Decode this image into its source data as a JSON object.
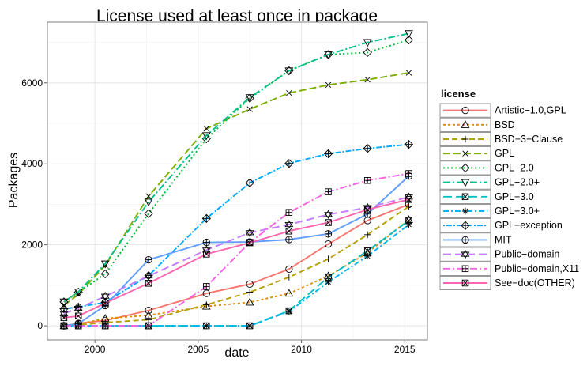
{
  "chart_data": {
    "type": "line",
    "title": "License used at least once in package",
    "xlabel": "date",
    "ylabel": "Packages",
    "xlim": [
      1997.7,
      2016.1
    ],
    "ylim": [
      -350,
      7500
    ],
    "x_ticks": [
      2000,
      2005,
      2010,
      2015
    ],
    "y_ticks": [
      0,
      2000,
      4000,
      6000
    ],
    "grid": true,
    "legend_title": "license",
    "legend_position": "right",
    "series": [
      {
        "name": "Artistic−1.0,GPL",
        "color": "#F8766D",
        "dash": "",
        "marker": "circle",
        "points": [
          [
            1998.5,
            0
          ],
          [
            1999.2,
            60
          ],
          [
            2000.5,
            130
          ],
          [
            2002.6,
            380
          ],
          [
            2005.4,
            800
          ],
          [
            2007.5,
            1030
          ],
          [
            2009.4,
            1400
          ],
          [
            2011.3,
            2020
          ],
          [
            2013.2,
            2600
          ],
          [
            2015.2,
            3000
          ]
        ]
      },
      {
        "name": "BSD",
        "color": "#DE8C00",
        "dash": "3,3",
        "marker": "triangle",
        "points": [
          [
            1998.5,
            0
          ],
          [
            1999.2,
            40
          ],
          [
            2000.5,
            180
          ],
          [
            2002.6,
            260
          ],
          [
            2005.4,
            480
          ],
          [
            2007.5,
            580
          ],
          [
            2009.4,
            800
          ],
          [
            2011.3,
            1230
          ],
          [
            2013.2,
            1800
          ],
          [
            2015.2,
            2620
          ]
        ]
      },
      {
        "name": "BSD−3−Clause",
        "color": "#B79F00",
        "dash": "7,4",
        "marker": "plus",
        "points": [
          [
            1998.5,
            0
          ],
          [
            1999.2,
            20
          ],
          [
            2000.5,
            80
          ],
          [
            2002.6,
            150
          ],
          [
            2005.4,
            520
          ],
          [
            2007.5,
            830
          ],
          [
            2009.4,
            1200
          ],
          [
            2011.3,
            1650
          ],
          [
            2013.2,
            2250
          ],
          [
            2015.2,
            2950
          ]
        ]
      },
      {
        "name": "GPL",
        "color": "#7CAE00",
        "dash": "9,4",
        "marker": "cross",
        "points": [
          [
            1998.5,
            500
          ],
          [
            1999.2,
            780
          ],
          [
            2000.5,
            1490
          ],
          [
            2002.6,
            3200
          ],
          [
            2005.4,
            4870
          ],
          [
            2007.5,
            5350
          ],
          [
            2009.4,
            5750
          ],
          [
            2011.3,
            5950
          ],
          [
            2013.2,
            6080
          ],
          [
            2015.2,
            6250
          ]
        ]
      },
      {
        "name": "GPL−2.0",
        "color": "#00BA38",
        "dash": "2,3",
        "marker": "diamond",
        "points": [
          [
            1998.5,
            590
          ],
          [
            1999.2,
            830
          ],
          [
            2000.5,
            1280
          ],
          [
            2002.6,
            2770
          ],
          [
            2005.4,
            4620
          ],
          [
            2007.5,
            5620
          ],
          [
            2009.4,
            6300
          ],
          [
            2011.3,
            6700
          ],
          [
            2013.2,
            6750
          ],
          [
            2015.2,
            7060
          ]
        ]
      },
      {
        "name": "GPL−2.0+",
        "color": "#00C08B",
        "dash": "9,3,2,3",
        "marker": "triangle-down",
        "points": [
          [
            1998.5,
            590
          ],
          [
            1999.2,
            840
          ],
          [
            2000.5,
            1530
          ],
          [
            2002.6,
            3060
          ],
          [
            2005.4,
            4700
          ],
          [
            2007.5,
            5640
          ],
          [
            2009.4,
            6300
          ],
          [
            2011.3,
            6700
          ],
          [
            2013.2,
            7000
          ],
          [
            2015.2,
            7220
          ]
        ]
      },
      {
        "name": "GPL−3.0",
        "color": "#00BFC4",
        "dash": "11,5",
        "marker": "square-x",
        "points": [
          [
            1998.5,
            0
          ],
          [
            1999.2,
            0
          ],
          [
            2000.5,
            0
          ],
          [
            2002.6,
            0
          ],
          [
            2005.4,
            0
          ],
          [
            2007.5,
            0
          ],
          [
            2009.4,
            370
          ],
          [
            2011.3,
            1200
          ],
          [
            2013.2,
            1850
          ],
          [
            2015.2,
            2600
          ]
        ]
      },
      {
        "name": "GPL−3.0+",
        "color": "#00B4F0",
        "dash": "7,3,2,3",
        "marker": "asterisk",
        "points": [
          [
            1998.5,
            0
          ],
          [
            1999.2,
            0
          ],
          [
            2000.5,
            0
          ],
          [
            2002.6,
            0
          ],
          [
            2005.4,
            0
          ],
          [
            2007.5,
            0
          ],
          [
            2009.4,
            350
          ],
          [
            2011.3,
            1080
          ],
          [
            2013.2,
            1720
          ],
          [
            2015.2,
            2500
          ]
        ]
      },
      {
        "name": "GPL−exception",
        "color": "#00A9FF",
        "dash": "2,2,7,2",
        "marker": "diamond-plus",
        "points": [
          [
            1998.5,
            420
          ],
          [
            1999.2,
            460
          ],
          [
            2000.5,
            580
          ],
          [
            2002.6,
            1240
          ],
          [
            2005.4,
            2650
          ],
          [
            2007.5,
            3530
          ],
          [
            2009.4,
            4010
          ],
          [
            2011.3,
            4250
          ],
          [
            2013.2,
            4380
          ],
          [
            2015.2,
            4480
          ]
        ]
      },
      {
        "name": "MIT",
        "color": "#619CFF",
        "dash": "",
        "marker": "circle-plus",
        "points": [
          [
            1998.5,
            0
          ],
          [
            1999.2,
            50
          ],
          [
            2000.5,
            500
          ],
          [
            2002.6,
            1630
          ],
          [
            2005.4,
            2060
          ],
          [
            2007.5,
            2070
          ],
          [
            2009.4,
            2130
          ],
          [
            2011.3,
            2270
          ],
          [
            2013.2,
            2760
          ],
          [
            2015.2,
            3700
          ]
        ]
      },
      {
        "name": "Public−domain",
        "color": "#C77CFF",
        "dash": "10,5",
        "marker": "star",
        "points": [
          [
            1998.5,
            300
          ],
          [
            1999.2,
            430
          ],
          [
            2000.5,
            730
          ],
          [
            2002.6,
            1230
          ],
          [
            2005.4,
            1870
          ],
          [
            2007.5,
            2300
          ],
          [
            2009.4,
            2500
          ],
          [
            2011.3,
            2750
          ],
          [
            2013.2,
            2920
          ],
          [
            2015.2,
            3180
          ]
        ]
      },
      {
        "name": "Public−domain,X11",
        "color": "#F564E3",
        "dash": "9,3,2,3",
        "marker": "square-plus",
        "points": [
          [
            1998.5,
            0
          ],
          [
            1999.2,
            0
          ],
          [
            2000.5,
            0
          ],
          [
            2002.6,
            0
          ],
          [
            2005.4,
            970
          ],
          [
            2007.5,
            2060
          ],
          [
            2009.4,
            2800
          ],
          [
            2011.3,
            3310
          ],
          [
            2013.2,
            3590
          ],
          [
            2015.2,
            3760
          ]
        ]
      },
      {
        "name": "See−doc(OTHER)",
        "color": "#FF64B0",
        "dash": "",
        "marker": "square-x",
        "points": [
          [
            1998.5,
            200
          ],
          [
            1999.2,
            240
          ],
          [
            2000.5,
            560
          ],
          [
            2002.6,
            1050
          ],
          [
            2005.4,
            1770
          ],
          [
            2007.5,
            2050
          ],
          [
            2009.4,
            2340
          ],
          [
            2011.3,
            2550
          ],
          [
            2013.2,
            2870
          ],
          [
            2015.2,
            3120
          ]
        ]
      }
    ]
  }
}
